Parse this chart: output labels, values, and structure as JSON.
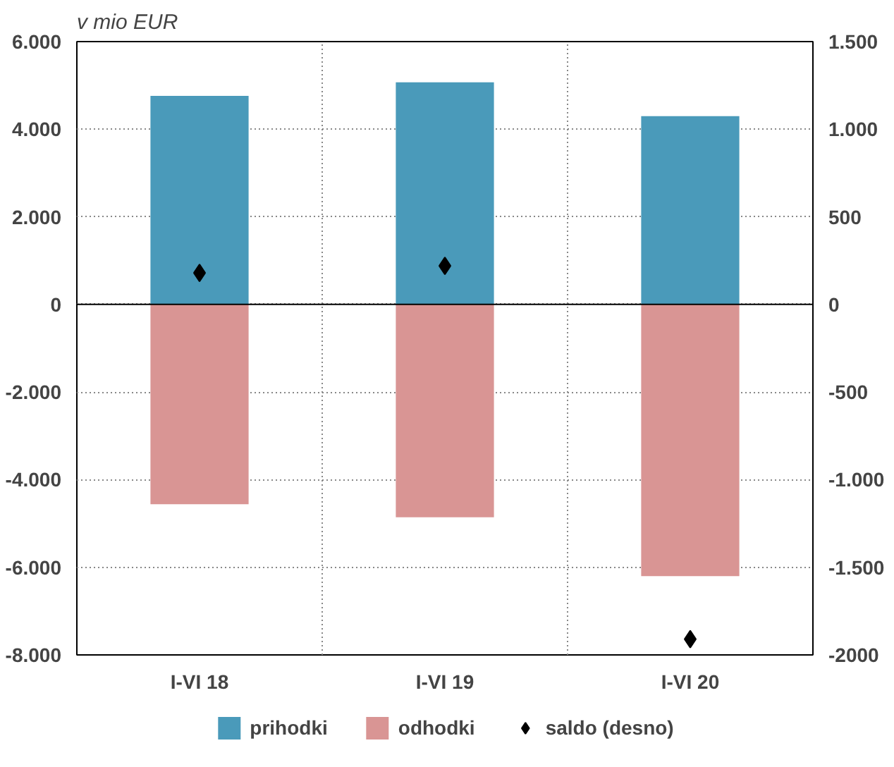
{
  "chart_data": {
    "type": "bar",
    "title": "v mio EUR",
    "categories": [
      "I-VI 18",
      "I-VI 19",
      "I-VI 20"
    ],
    "stacked": true,
    "series": [
      {
        "name": "prihodki",
        "color": "#4a9aba",
        "values": [
          4760,
          5070,
          4300
        ]
      },
      {
        "name": "odhodki",
        "color": "#d99594",
        "values": [
          -4560,
          -4860,
          -6200
        ]
      },
      {
        "name": "saldo (desno)",
        "type": "scatter",
        "marker": "diamond",
        "color": "#000000",
        "axis": "y2",
        "values": [
          180,
          220,
          -1910
        ]
      }
    ],
    "ylim": [
      -8000,
      6000
    ],
    "yticks": [
      {
        "value": -8000,
        "label": "-8.000"
      },
      {
        "value": -6000,
        "label": "-6.000"
      },
      {
        "value": -4000,
        "label": "-4.000"
      },
      {
        "value": -2000,
        "label": "-2.000"
      },
      0,
      {
        "value": 2000,
        "label": "2.000"
      },
      {
        "value": 4000,
        "label": "4.000"
      },
      {
        "value": 6000,
        "label": "6.000"
      }
    ],
    "y2lim": [
      -2000,
      1500
    ],
    "y2ticks": [
      -2000,
      {
        "value": -1500,
        "label": "-1.500"
      },
      {
        "value": -1000,
        "label": "-1.000"
      },
      -500,
      0,
      500,
      {
        "value": 1000,
        "label": "1.000"
      },
      {
        "value": 1500,
        "label": "1.500"
      }
    ],
    "grid": true,
    "legend": "bottom"
  }
}
